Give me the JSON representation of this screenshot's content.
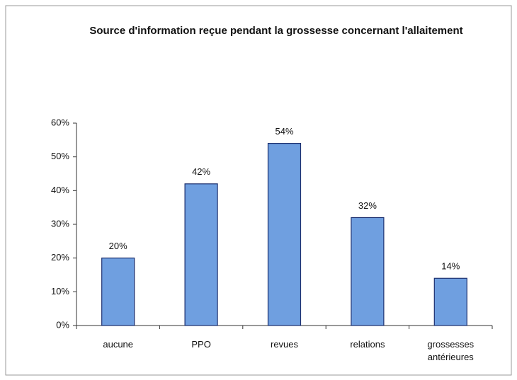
{
  "chart_data": {
    "type": "bar",
    "title": "Source d'information reçue pendant la grossesse concernant l'allaitement",
    "categories": [
      "aucune",
      "PPO",
      "revues",
      "relations",
      "grossesses antérieures"
    ],
    "values": [
      20,
      42,
      54,
      32,
      14
    ],
    "value_labels": [
      "20%",
      "42%",
      "54%",
      "32%",
      "14%"
    ],
    "color": "#6f9fe0",
    "ylim": [
      0,
      60
    ],
    "yticks": [
      {
        "value": 0,
        "label": "0%"
      },
      {
        "value": 10,
        "label": "10%"
      },
      {
        "value": 20,
        "label": "20%"
      },
      {
        "value": 30,
        "label": "30%"
      },
      {
        "value": 40,
        "label": "40%"
      },
      {
        "value": 50,
        "label": "50%"
      },
      {
        "value": 60,
        "label": "60%"
      }
    ],
    "grid": false
  }
}
